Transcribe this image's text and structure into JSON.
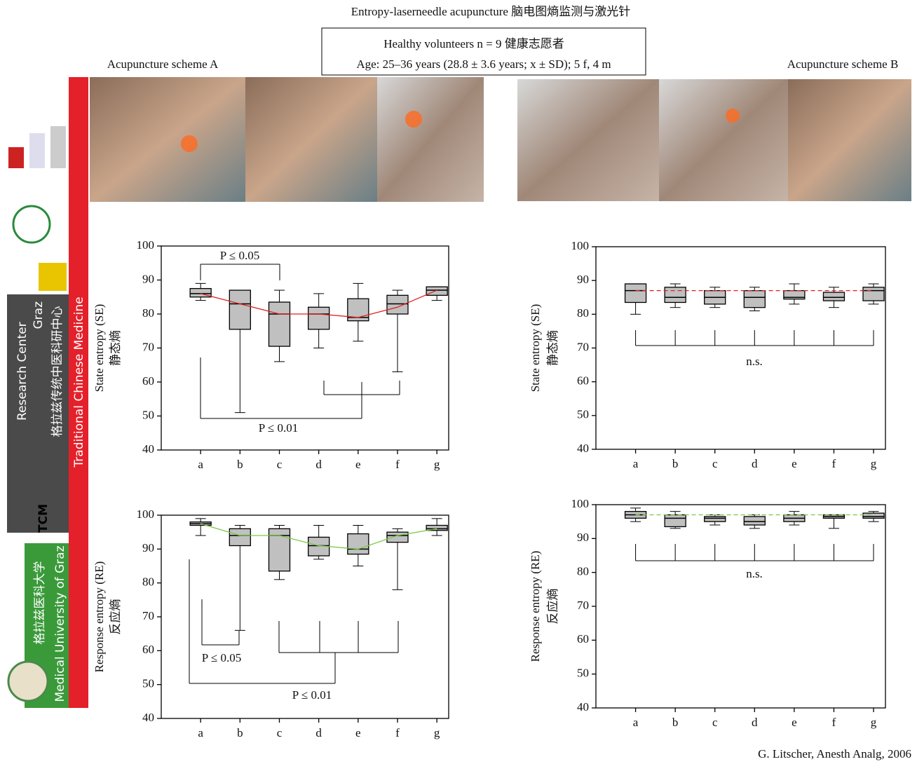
{
  "header": {
    "title": "Entropy-laserneedle acupuncture 脑电图熵监测与激光针",
    "subjects": "Healthy volunteers n = 9   健康志愿者",
    "age": "Age: 25–36 years (28.8 ± 3.6 years; x ± SD); 5 f, 4 m",
    "scheme_a": "Acupuncture scheme A",
    "scheme_b": "Acupuncture scheme B"
  },
  "sidebar": {
    "research_center": "Research Center",
    "graz": "Graz",
    "research_center_cn": "格拉兹传统中医科研中心",
    "tcm_label": "Traditional Chinese Medicine",
    "tcm": "TCM",
    "university_cn": "格拉兹医科大学",
    "university": "Medical University of Graz"
  },
  "credit": "G. Litscher, Anesth Analg, 2006",
  "chart_data": [
    {
      "type": "box",
      "ylabel": "State entropy (SE)",
      "ylabel_cn": "静态熵",
      "categories": [
        "a",
        "b",
        "c",
        "d",
        "e",
        "f",
        "g"
      ],
      "min": [
        84,
        51,
        66,
        70,
        72,
        63,
        84
      ],
      "q1": [
        85,
        75.5,
        70.5,
        75.5,
        78,
        80,
        85.5
      ],
      "median": [
        86,
        83,
        80,
        80,
        79,
        83,
        87
      ],
      "q3": [
        87.5,
        87,
        83.5,
        82,
        84.5,
        85.5,
        88
      ],
      "max": [
        89,
        87,
        87,
        86,
        89,
        87,
        88
      ],
      "mean": [
        86,
        83,
        80,
        80,
        79,
        82,
        87
      ],
      "mean_color": "#e0201c",
      "mean_dashed": false,
      "box_color": "#c0c0c0",
      "ylim": [
        40,
        100
      ],
      "yticks": [
        40,
        50,
        60,
        70,
        80,
        90,
        100
      ],
      "annotations": [
        "P ≤ 0.05",
        "P ≤ 0.01"
      ]
    },
    {
      "type": "box",
      "ylabel": "State entropy (SE)",
      "ylabel_cn": "静态熵",
      "categories": [
        "a",
        "b",
        "c",
        "d",
        "e",
        "f",
        "g"
      ],
      "min": [
        80,
        82,
        82,
        81,
        83,
        82,
        83
      ],
      "q1": [
        83.5,
        83.5,
        83,
        82,
        84.5,
        84,
        84
      ],
      "median": [
        87,
        85,
        85,
        85,
        85,
        85,
        87
      ],
      "q3": [
        89,
        88,
        87,
        87,
        87,
        86.5,
        88
      ],
      "max": [
        89,
        89,
        88,
        88,
        89,
        88,
        89
      ],
      "mean": [
        87,
        87,
        87,
        87,
        87,
        87,
        87
      ],
      "mean_color": "#e0201c",
      "mean_dashed": true,
      "box_color": "#c0c0c0",
      "ylim": [
        40,
        100
      ],
      "yticks": [
        40,
        50,
        60,
        70,
        80,
        90,
        100
      ],
      "annotations": [
        "n.s."
      ]
    },
    {
      "type": "box",
      "ylabel": "Response entropy (RE)",
      "ylabel_cn": "反应熵",
      "categories": [
        "a",
        "b",
        "c",
        "d",
        "e",
        "f",
        "g"
      ],
      "min": [
        94,
        66,
        81,
        87,
        85,
        78,
        94
      ],
      "q1": [
        97,
        91,
        83.5,
        88,
        88.5,
        92,
        95.5
      ],
      "median": [
        97.5,
        94,
        94,
        91,
        90,
        94,
        96
      ],
      "q3": [
        98,
        96,
        96,
        93.5,
        94.5,
        95,
        97
      ],
      "max": [
        99,
        97,
        97,
        97,
        97,
        96,
        99
      ],
      "mean": [
        97.5,
        94,
        94,
        91,
        90,
        94,
        96
      ],
      "mean_color": "#7ac943",
      "mean_dashed": false,
      "box_color": "#c0c0c0",
      "ylim": [
        40,
        100
      ],
      "yticks": [
        40,
        50,
        60,
        70,
        80,
        90,
        100
      ],
      "annotations": [
        "P ≤ 0.05",
        "P ≤ 0.01"
      ]
    },
    {
      "type": "box",
      "ylabel": "Response entropy (RE)",
      "ylabel_cn": "反应熵",
      "categories": [
        "a",
        "b",
        "c",
        "d",
        "e",
        "f",
        "g"
      ],
      "min": [
        95,
        93,
        94,
        93,
        94,
        93,
        95
      ],
      "q1": [
        96,
        93.5,
        95,
        94,
        95,
        96,
        96
      ],
      "median": [
        97,
        96,
        96,
        95,
        96,
        96.5,
        96.5
      ],
      "q3": [
        98,
        97,
        96.5,
        96.5,
        97,
        97,
        97.5
      ],
      "max": [
        99,
        98,
        97,
        97,
        98,
        97,
        98
      ],
      "mean": [
        97,
        97,
        97,
        97,
        97,
        97,
        97
      ],
      "mean_color": "#7ac943",
      "mean_dashed": true,
      "box_color": "#c0c0c0",
      "ylim": [
        40,
        100
      ],
      "yticks": [
        40,
        50,
        60,
        70,
        80,
        90,
        100
      ],
      "annotations": [
        "n.s."
      ]
    }
  ]
}
